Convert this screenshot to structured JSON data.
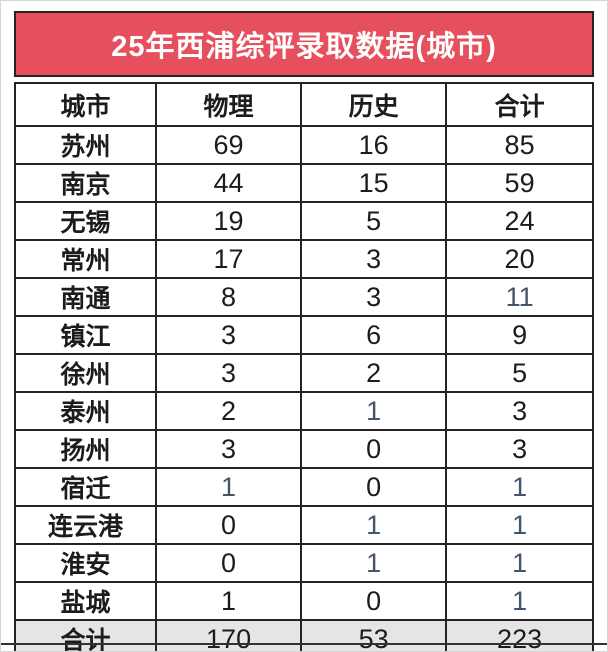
{
  "chart_data": {
    "type": "table",
    "title": "25年西浦综评录取数据(城市)",
    "columns": [
      "城市",
      "物理",
      "历史",
      "合计"
    ],
    "rows": [
      {
        "cells": [
          "苏州",
          69,
          16,
          85
        ],
        "blue_cols": []
      },
      {
        "cells": [
          "南京",
          44,
          15,
          59
        ],
        "blue_cols": []
      },
      {
        "cells": [
          "无锡",
          19,
          5,
          24
        ],
        "blue_cols": []
      },
      {
        "cells": [
          "常州",
          17,
          3,
          20
        ],
        "blue_cols": []
      },
      {
        "cells": [
          "南通",
          8,
          3,
          11
        ],
        "blue_cols": [
          3
        ]
      },
      {
        "cells": [
          "镇江",
          3,
          6,
          9
        ],
        "blue_cols": []
      },
      {
        "cells": [
          "徐州",
          3,
          2,
          5
        ],
        "blue_cols": []
      },
      {
        "cells": [
          "泰州",
          2,
          1,
          3
        ],
        "blue_cols": [
          2
        ]
      },
      {
        "cells": [
          "扬州",
          3,
          0,
          3
        ],
        "blue_cols": []
      },
      {
        "cells": [
          "宿迁",
          1,
          0,
          1
        ],
        "blue_cols": [
          1,
          3
        ]
      },
      {
        "cells": [
          "连云港",
          0,
          1,
          1
        ],
        "blue_cols": [
          2,
          3
        ]
      },
      {
        "cells": [
          "淮安",
          0,
          1,
          1
        ],
        "blue_cols": [
          2,
          3
        ]
      },
      {
        "cells": [
          "盐城",
          1,
          0,
          1
        ],
        "blue_cols": [
          3
        ]
      }
    ],
    "total_row": {
      "cells": [
        "合计",
        170,
        53,
        223
      ],
      "blue_cols": []
    }
  },
  "colors": {
    "title_bg": "#e6505e",
    "title_text": "#ffffff",
    "header_bg": "#e9e9e9",
    "total_bg": "#e5e5e5",
    "border": "#242424",
    "num": "#1c1c1c",
    "num_blue": "#44546a"
  }
}
